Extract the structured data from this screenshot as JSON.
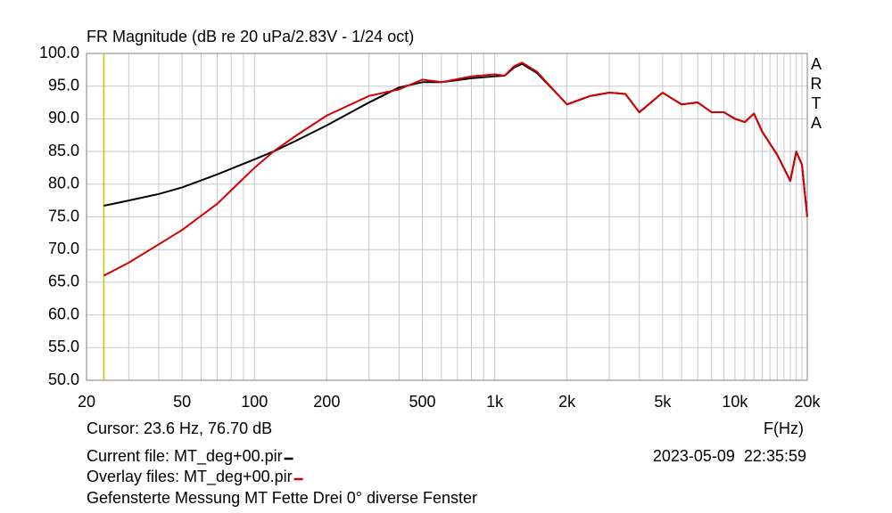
{
  "chart_data": {
    "type": "line",
    "title": "FR Magnitude (dB re 20 uPa/2.83V - 1/24 oct)",
    "side_label": [
      "A",
      "R",
      "T",
      "A"
    ],
    "x_label": "F(Hz)",
    "x_log": true,
    "grid": true,
    "x": [
      23.6,
      30,
      40,
      50,
      70,
      100,
      120,
      150,
      200,
      300,
      400,
      500,
      600,
      800,
      1000,
      1100,
      1200,
      1300,
      1500,
      1800,
      2000,
      2500,
      3000,
      3500,
      4000,
      5000,
      6000,
      7000,
      8000,
      9000,
      10000,
      11000,
      12000,
      13000,
      15000,
      17000,
      18000,
      19000,
      20000
    ],
    "series": [
      {
        "name": "Current file: MT_deg+00.pir",
        "color": "#000000",
        "values": [
          76.7,
          77.5,
          78.5,
          79.5,
          81.5,
          83.8,
          85,
          86.7,
          89,
          92.5,
          94.8,
          95.6,
          95.6,
          96.2,
          96.5,
          96.6,
          97.8,
          98.4,
          97,
          94,
          92.2,
          93.5,
          94,
          93.8,
          91,
          94,
          92.2,
          92.5,
          91,
          91,
          90,
          89.5,
          90.8,
          88,
          84.5,
          80.5,
          85,
          83,
          75
        ]
      },
      {
        "name": "Overlay files: MT_deg+00.pir",
        "color": "#d40000",
        "values": [
          66,
          68,
          70.8,
          73,
          77,
          82.5,
          85,
          87.5,
          90.5,
          93.5,
          94.5,
          96,
          95.6,
          96.5,
          96.8,
          96.6,
          98,
          98.6,
          97.2,
          94,
          92.2,
          93.5,
          94,
          93.8,
          91,
          94,
          92.2,
          92.5,
          91,
          91,
          90,
          89.5,
          90.8,
          88,
          84.5,
          80.5,
          85,
          83,
          75
        ]
      }
    ],
    "xlim": [
      20,
      20000
    ],
    "xticks": [
      20,
      50,
      100,
      200,
      500,
      {
        "value": 1000,
        "label": "1k"
      },
      {
        "value": 2000,
        "label": "2k"
      },
      {
        "value": 5000,
        "label": "5k"
      },
      {
        "value": 10000,
        "label": "10k"
      },
      {
        "value": 20000,
        "label": "20k"
      }
    ],
    "xgrid": [
      30,
      40,
      60,
      70,
      80,
      90,
      300,
      400,
      600,
      700,
      800,
      900,
      3000,
      4000,
      6000,
      7000,
      8000,
      9000,
      11000,
      12000,
      13000,
      14000,
      15000,
      16000,
      17000,
      18000,
      19000
    ],
    "ylim": [
      50,
      100
    ],
    "yticks": [
      {
        "value": 50,
        "label": "50.0"
      },
      {
        "value": 55,
        "label": "55.0"
      },
      {
        "value": 60,
        "label": "60.0"
      },
      {
        "value": 65,
        "label": "65.0"
      },
      {
        "value": 70,
        "label": "70.0"
      },
      {
        "value": 75,
        "label": "75.0"
      },
      {
        "value": 80,
        "label": "80.0"
      },
      {
        "value": 85,
        "label": "85.0"
      },
      {
        "value": 90,
        "label": "90.0"
      },
      {
        "value": 95,
        "label": "95.0"
      },
      {
        "value": 100,
        "label": "100.0"
      }
    ],
    "cursor_x": 23.6,
    "cursor_color": "#c8c800",
    "cursor_text": "Cursor: 23.6 Hz, 76.70 dB",
    "datetime": "2023-05-09  22:35:59",
    "description": "Gefensterte Messung MT Fette Drei 0° diverse Fenster"
  }
}
